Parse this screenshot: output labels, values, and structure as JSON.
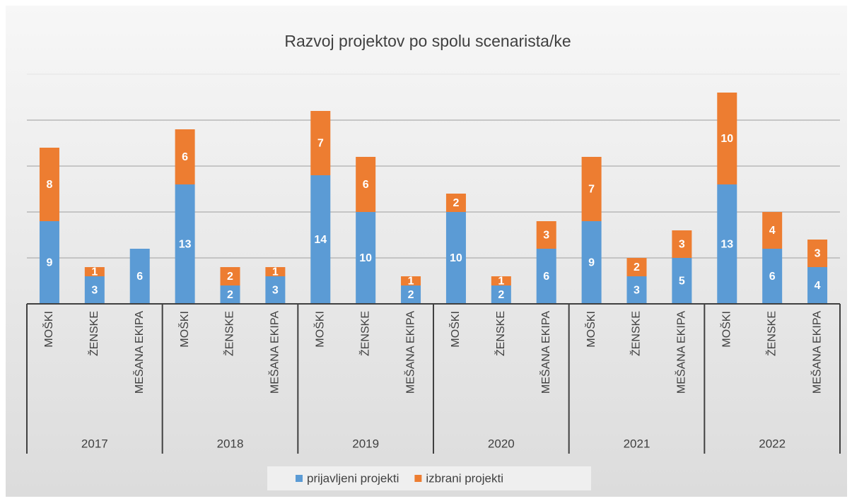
{
  "chart_data": {
    "type": "stacked_bar",
    "title": "Razvoj projektov po spolu scenarista/ke",
    "groups": [
      "2017",
      "2018",
      "2019",
      "2020",
      "2021",
      "2022"
    ],
    "categories": [
      "MOŠKI",
      "ŽENSKE",
      "MEŠANA EKIPA",
      "MOŠKI",
      "ŽENSKE",
      "MEŠANA EKIPA",
      "MOŠKI",
      "ŽENSKE",
      "MEŠANA EKIPA",
      "MOŠKI",
      "ŽENSKE",
      "MEŠANA EKIPA",
      "MOŠKI",
      "ŽENSKE",
      "MEŠANA EKIPA",
      "MOŠKI",
      "ŽENSKE",
      "MEŠANA EKIPA"
    ],
    "series": [
      {
        "name": "prijavljeni projekti",
        "color": "#5b9bd5",
        "values": [
          9,
          3,
          6,
          13,
          2,
          3,
          14,
          10,
          2,
          10,
          2,
          6,
          9,
          3,
          5,
          13,
          6,
          4
        ]
      },
      {
        "name": "izbrani projekti",
        "color": "#ed7d31",
        "values": [
          8,
          1,
          null,
          6,
          2,
          1,
          7,
          6,
          1,
          2,
          1,
          3,
          7,
          2,
          3,
          10,
          4,
          3
        ]
      }
    ],
    "ylim": [
      0,
      25
    ],
    "yticks": [
      0,
      5,
      10,
      15,
      20,
      25
    ],
    "grid": true,
    "legend": "bottom"
  }
}
